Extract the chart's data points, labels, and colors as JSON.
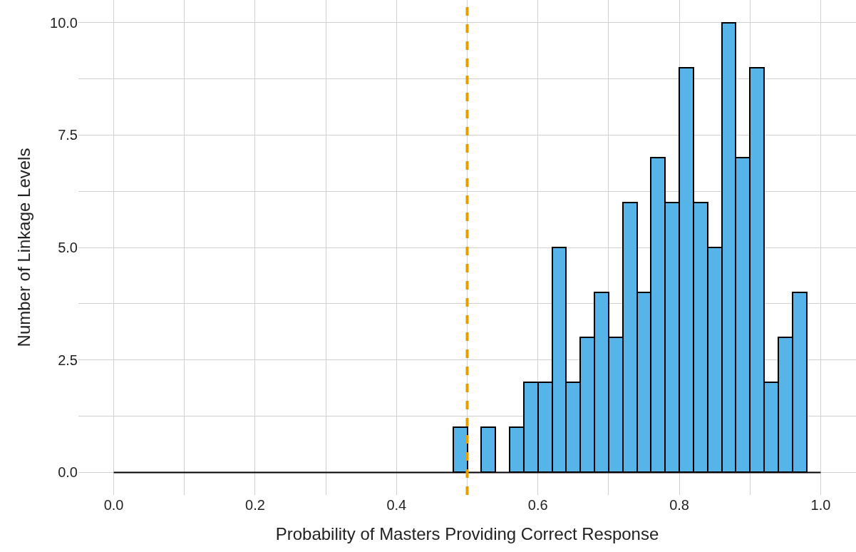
{
  "chart_data": {
    "type": "histogram",
    "xlabel": "Probability of Masters Providing Correct Response",
    "ylabel": "Number of Linkage Levels",
    "bins": [
      0.0,
      0.02,
      0.04,
      0.06,
      0.08,
      0.1,
      0.12,
      0.14,
      0.16,
      0.18,
      0.2,
      0.22,
      0.24,
      0.26,
      0.28,
      0.3,
      0.32,
      0.34,
      0.36,
      0.38,
      0.4,
      0.42,
      0.44,
      0.46,
      0.48,
      0.5,
      0.52,
      0.54,
      0.56,
      0.58,
      0.6,
      0.62,
      0.64,
      0.66,
      0.68,
      0.7,
      0.72,
      0.74,
      0.76,
      0.78,
      0.8,
      0.82,
      0.84,
      0.86,
      0.88,
      0.9,
      0.92,
      0.94,
      0.96,
      0.98,
      1.0
    ],
    "values": [
      0,
      0,
      0,
      0,
      0,
      0,
      0,
      0,
      0,
      0,
      0,
      0,
      0,
      0,
      0,
      0,
      0,
      0,
      0,
      0,
      0,
      0,
      0,
      0,
      1,
      0,
      1,
      0,
      1,
      2,
      2,
      5,
      2,
      3,
      4,
      3,
      6,
      4,
      7,
      6,
      9,
      6,
      5,
      10,
      7,
      9,
      2,
      3,
      4,
      0
    ],
    "color": "#56b4e9",
    "xlim": [
      -0.05,
      1.05
    ],
    "xticks": [
      {
        "value": 0,
        "label": "0.0"
      },
      {
        "value": 0.2,
        "label": "0.2"
      },
      {
        "value": 0.4,
        "label": "0.4"
      },
      {
        "value": 0.6,
        "label": "0.6"
      },
      {
        "value": 0.8,
        "label": "0.8"
      },
      {
        "value": 1,
        "label": "1.0"
      }
    ],
    "ylim": [
      -0.5,
      10.5
    ],
    "yticks": [
      {
        "value": 0,
        "label": "0.0"
      },
      {
        "value": 2.5,
        "label": "2.5"
      },
      {
        "value": 5,
        "label": "5.0"
      },
      {
        "value": 7.5,
        "label": "7.5"
      },
      {
        "value": 10,
        "label": "10.0"
      }
    ],
    "ref_lines": [
      {
        "axis": "x",
        "value": 0.5,
        "color": "#e69f00",
        "line_style": "dashed"
      }
    ],
    "grid": true
  }
}
